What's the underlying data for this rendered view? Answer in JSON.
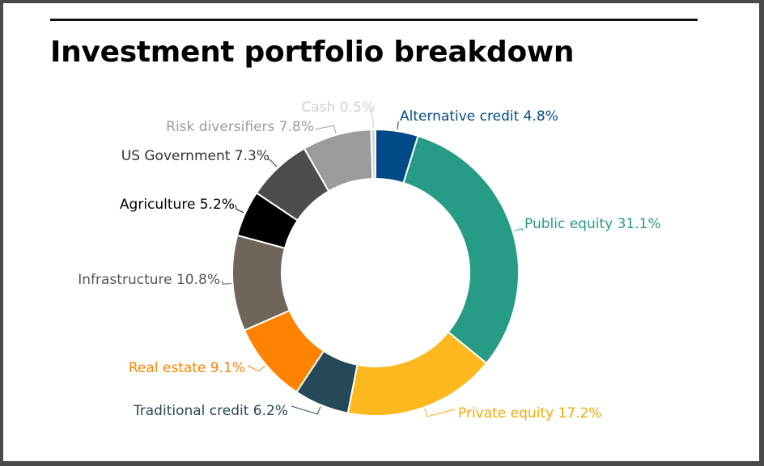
{
  "title": "Investment portfolio breakdown",
  "chart_data": {
    "type": "pie",
    "donut": true,
    "title": "Investment portfolio breakdown",
    "unit": "%",
    "slices": [
      {
        "label": "Alternative credit",
        "value": 4.8,
        "display": "Alternative credit 4.8%",
        "color": "#004b87",
        "label_color": "#004b87"
      },
      {
        "label": "Public equity",
        "value": 31.1,
        "display": "Public equity 31.1%",
        "color": "#269b86",
        "label_color": "#269b86"
      },
      {
        "label": "Private equity",
        "value": 17.2,
        "display": "Private equity 17.2%",
        "color": "#fdb81e",
        "label_color": "#f5a800"
      },
      {
        "label": "Traditional credit",
        "value": 6.2,
        "display": "Traditional credit 6.2%",
        "color": "#254958",
        "label_color": "#254958"
      },
      {
        "label": "Real estate",
        "value": 9.1,
        "display": "Real estate 9.1%",
        "color": "#ff8200",
        "label_color": "#ff8200"
      },
      {
        "label": "Infrastructure",
        "value": 10.8,
        "display": "Infrastructure 10.8%",
        "color": "#6f655b",
        "label_color": "#555555"
      },
      {
        "label": "Agriculture",
        "value": 5.2,
        "display": "Agriculture 5.2%",
        "color": "#000000",
        "label_color": "#000000"
      },
      {
        "label": "US Government",
        "value": 7.3,
        "display": "US Government 7.3%",
        "color": "#4d4d4d",
        "label_color": "#333333"
      },
      {
        "label": "Risk diversifiers",
        "value": 7.8,
        "display": "Risk diversifiers 7.8%",
        "color": "#9b9b9b",
        "label_color": "#9b9b9b"
      },
      {
        "label": "Cash",
        "value": 0.5,
        "display": "Cash 0.5%",
        "color": "#d6d6d6",
        "label_color": "#cfcfcf"
      }
    ]
  }
}
